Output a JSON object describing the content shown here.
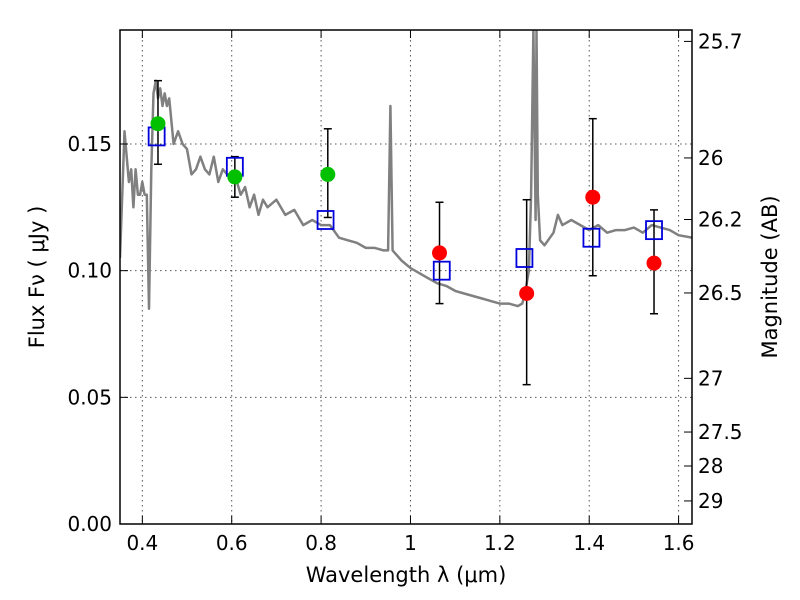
{
  "chart_data": {
    "type": "scatter",
    "xlabel": "Wavelength  λ (μm)",
    "ylabel": "Flux  Fν  ( μJy )",
    "y2label": "Magnitude (AB)",
    "xlim": [
      0.35,
      1.63
    ],
    "ylim": [
      0.0,
      0.195
    ],
    "x_ticks": [
      0.4,
      0.6,
      0.8,
      1.0,
      1.2,
      1.4,
      1.6
    ],
    "x_tick_labels": [
      "0.4",
      "0.6",
      "0.8",
      "1",
      "1.2",
      "1.4",
      "1.6"
    ],
    "y_ticks": [
      0.0,
      0.05,
      0.1,
      0.15
    ],
    "y_tick_labels": [
      "0.00",
      "0.05",
      "0.10",
      "0.15"
    ],
    "y2_ticks": [
      {
        "label": "25.7",
        "flux": 0.1905
      },
      {
        "label": "26",
        "flux": 0.1445
      },
      {
        "label": "26.2",
        "flux": 0.1202
      },
      {
        "label": "26.5",
        "flux": 0.0912
      },
      {
        "label": "27",
        "flux": 0.0575
      },
      {
        "label": "27.5",
        "flux": 0.0363
      },
      {
        "label": "28",
        "flux": 0.0229
      },
      {
        "label": "29",
        "flux": 0.0091
      }
    ],
    "grid": true,
    "colors": {
      "model": "#808080",
      "green_points": "#00c000",
      "red_points": "#ff0000",
      "model_boxes": "#0000dd",
      "errorbars": "#000000"
    },
    "model_spectrum": {
      "x": [
        0.35,
        0.36,
        0.37,
        0.375,
        0.38,
        0.385,
        0.39,
        0.395,
        0.4,
        0.405,
        0.41,
        0.415,
        0.42,
        0.425,
        0.43,
        0.435,
        0.44,
        0.445,
        0.45,
        0.455,
        0.46,
        0.47,
        0.48,
        0.49,
        0.5,
        0.51,
        0.52,
        0.53,
        0.54,
        0.55,
        0.56,
        0.57,
        0.58,
        0.59,
        0.6,
        0.61,
        0.62,
        0.63,
        0.64,
        0.65,
        0.66,
        0.67,
        0.68,
        0.7,
        0.72,
        0.74,
        0.76,
        0.78,
        0.8,
        0.82,
        0.84,
        0.86,
        0.88,
        0.9,
        0.92,
        0.94,
        0.95,
        0.955,
        0.96,
        0.965,
        0.97,
        0.98,
        1.0,
        1.02,
        1.04,
        1.06,
        1.08,
        1.1,
        1.12,
        1.14,
        1.16,
        1.18,
        1.2,
        1.22,
        1.24,
        1.25,
        1.255,
        1.26,
        1.265,
        1.27,
        1.275,
        1.28,
        1.282,
        1.285,
        1.29,
        1.3,
        1.32,
        1.33,
        1.34,
        1.36,
        1.38,
        1.4,
        1.42,
        1.44,
        1.46,
        1.48,
        1.5,
        1.52,
        1.54,
        1.56,
        1.58,
        1.6,
        1.63
      ],
      "y": [
        0.105,
        0.155,
        0.135,
        0.14,
        0.125,
        0.14,
        0.13,
        0.13,
        0.135,
        0.13,
        0.13,
        0.085,
        0.14,
        0.17,
        0.175,
        0.168,
        0.172,
        0.165,
        0.17,
        0.165,
        0.168,
        0.15,
        0.155,
        0.15,
        0.148,
        0.138,
        0.14,
        0.145,
        0.14,
        0.138,
        0.145,
        0.135,
        0.14,
        0.138,
        0.135,
        0.136,
        0.13,
        0.133,
        0.125,
        0.13,
        0.122,
        0.128,
        0.125,
        0.128,
        0.122,
        0.124,
        0.118,
        0.12,
        0.118,
        0.118,
        0.113,
        0.112,
        0.111,
        0.109,
        0.109,
        0.108,
        0.108,
        0.165,
        0.108,
        0.107,
        0.106,
        0.104,
        0.101,
        0.099,
        0.097,
        0.095,
        0.094,
        0.092,
        0.091,
        0.09,
        0.089,
        0.088,
        0.087,
        0.087,
        0.086,
        0.087,
        0.09,
        0.095,
        0.1,
        0.13,
        0.195,
        0.12,
        0.195,
        0.13,
        0.112,
        0.11,
        0.115,
        0.122,
        0.118,
        0.12,
        0.118,
        0.116,
        0.118,
        0.115,
        0.116,
        0.116,
        0.117,
        0.115,
        0.118,
        0.117,
        0.116,
        0.114,
        0.113
      ]
    },
    "observed_green": [
      {
        "x": 0.435,
        "y": 0.158,
        "yerr_low": 0.142,
        "yerr_high": 0.175
      },
      {
        "x": 0.607,
        "y": 0.137,
        "yerr_low": 0.129,
        "yerr_high": 0.145
      },
      {
        "x": 0.815,
        "y": 0.138,
        "yerr_low": 0.121,
        "yerr_high": 0.156
      }
    ],
    "observed_red": [
      {
        "x": 1.065,
        "y": 0.107,
        "yerr_low": 0.087,
        "yerr_high": 0.127
      },
      {
        "x": 1.26,
        "y": 0.091,
        "yerr_low": 0.055,
        "yerr_high": 0.128
      },
      {
        "x": 1.408,
        "y": 0.129,
        "yerr_low": 0.098,
        "yerr_high": 0.16
      },
      {
        "x": 1.545,
        "y": 0.103,
        "yerr_low": 0.083,
        "yerr_high": 0.124
      }
    ],
    "model_boxes": [
      {
        "x": 0.432,
        "y": 0.153
      },
      {
        "x": 0.607,
        "y": 0.141
      },
      {
        "x": 0.81,
        "y": 0.12
      },
      {
        "x": 1.07,
        "y": 0.1
      },
      {
        "x": 1.255,
        "y": 0.105
      },
      {
        "x": 1.405,
        "y": 0.113
      },
      {
        "x": 1.545,
        "y": 0.116
      }
    ]
  }
}
